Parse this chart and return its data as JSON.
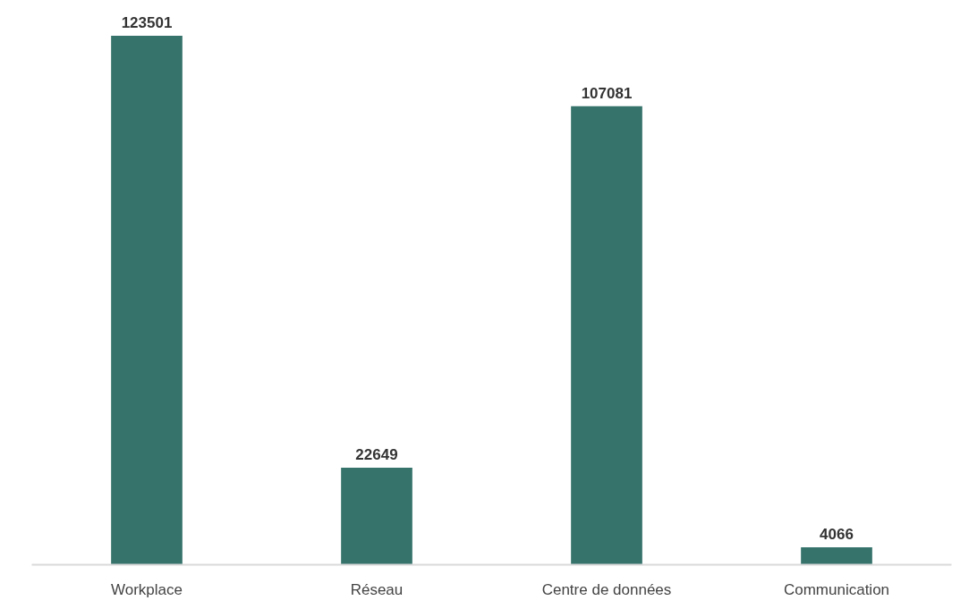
{
  "chart_data": {
    "type": "bar",
    "categories": [
      "Workplace",
      "Réseau",
      "Centre de données",
      "Communication"
    ],
    "values": [
      123501,
      22649,
      107081,
      4066
    ],
    "color": "#36736b",
    "data_labels": true
  }
}
